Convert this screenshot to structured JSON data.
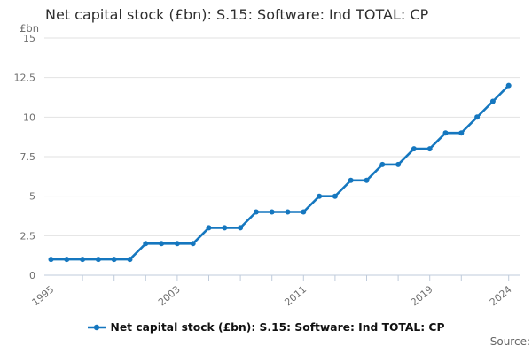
{
  "title": "Net capital stock (£bn): S.15: Software: Ind TOTAL: CP",
  "source_label": "Source:",
  "legend": {
    "label": "Net capital stock (£bn): S.15: Software: Ind TOTAL: CP"
  },
  "colors": {
    "line": "#1577bf",
    "grid": "#e2e2e2",
    "axis": "#bfcbdb",
    "tick_text": "#6e6e6e",
    "title_text": "#2e2e2e",
    "legend_text": "#111111",
    "source_text": "#666666",
    "background": "#ffffff"
  },
  "chart_data": {
    "type": "line",
    "title": "Net capital stock (£bn): S.15: Software: Ind TOTAL: CP",
    "xlabel": "",
    "ylabel": "£bn",
    "legend_entries": [
      "Net capital stock (£bn): S.15: Software: Ind TOTAL: CP"
    ],
    "legend_position": "bottom",
    "grid": true,
    "ylim": [
      0,
      15
    ],
    "y_ticks": [
      0,
      2.5,
      5,
      7.5,
      10,
      12.5,
      15
    ],
    "x_ticks": [
      1995,
      1997,
      1999,
      2001,
      2003,
      2005,
      2007,
      2009,
      2011,
      2013,
      2015,
      2017,
      2019,
      2021,
      2024
    ],
    "x_labeled_ticks": [
      1995,
      2003,
      2011,
      2019,
      2024
    ],
    "x": [
      1995,
      1996,
      1997,
      1998,
      1999,
      2000,
      2001,
      2002,
      2003,
      2004,
      2005,
      2006,
      2007,
      2008,
      2009,
      2010,
      2011,
      2012,
      2013,
      2014,
      2015,
      2016,
      2017,
      2018,
      2019,
      2020,
      2021,
      2022,
      2023,
      2024
    ],
    "series": [
      {
        "name": "Net capital stock (£bn): S.15: Software: Ind TOTAL: CP",
        "values": [
          1,
          1,
          1,
          1,
          1,
          1,
          2,
          2,
          2,
          2,
          3,
          3,
          3,
          4,
          4,
          4,
          4,
          5,
          5,
          6,
          6,
          7,
          7,
          8,
          8,
          9,
          9,
          10,
          11,
          12
        ]
      }
    ]
  }
}
